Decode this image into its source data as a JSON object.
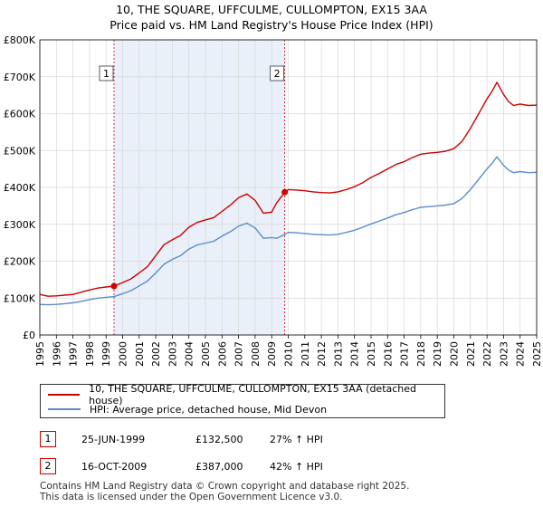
{
  "title": "10, THE SQUARE, UFFCULME, CULLOMPTON, EX15 3AA",
  "subtitle": "Price paid vs. HM Land Registry's House Price Index (HPI)",
  "colors": {
    "property": "#cc0000",
    "hpi": "#5b8ccc",
    "band": "#dce6f5",
    "marker_line": "#cc0000",
    "grid": "#d8d8d8"
  },
  "chart_data": {
    "type": "line",
    "title": "10, THE SQUARE, UFFCULME, CULLOMPTON, EX15 3AA",
    "subtitle": "Price paid vs. HM Land Registry's House Price Index (HPI)",
    "xlim": [
      1995,
      2025
    ],
    "ylim": [
      0,
      800000
    ],
    "y_ticks": [
      0,
      100000,
      200000,
      300000,
      400000,
      500000,
      600000,
      700000,
      800000
    ],
    "y_tick_labels": [
      "£0",
      "£100K",
      "£200K",
      "£300K",
      "£400K",
      "£500K",
      "£600K",
      "£700K",
      "£800K"
    ],
    "x_tick_labels": [
      "1995",
      "1996",
      "1997",
      "1998",
      "1999",
      "2000",
      "2001",
      "2002",
      "2003",
      "2004",
      "2005",
      "2006",
      "2007",
      "2008",
      "2009",
      "2010",
      "2011",
      "2012",
      "2013",
      "2014",
      "2015",
      "2016",
      "2017",
      "2018",
      "2019",
      "2020",
      "2021",
      "2022",
      "2023",
      "2024",
      "2025"
    ],
    "grid": true,
    "shaded_band": [
      1999.48,
      2009.79
    ],
    "series": [
      {
        "name": "10, THE SQUARE, UFFCULME, CULLOMPTON, EX15 3AA (detached house)",
        "x": [
          1995,
          1995.5,
          1996,
          1996.5,
          1997,
          1997.5,
          1998,
          1998.5,
          1999,
          1999.48,
          2000,
          2000.5,
          2001,
          2001.5,
          2002,
          2002.5,
          2003,
          2003.5,
          2004,
          2004.5,
          2005,
          2005.5,
          2006,
          2006.5,
          2007,
          2007.5,
          2008,
          2008.5,
          2009,
          2009.3,
          2009.79,
          2010,
          2010.5,
          2011,
          2011.5,
          2012,
          2012.5,
          2013,
          2013.5,
          2014,
          2014.5,
          2015,
          2015.5,
          2016,
          2016.5,
          2017,
          2017.5,
          2018,
          2018.5,
          2019,
          2019.5,
          2020,
          2020.5,
          2021,
          2021.5,
          2022,
          2022.3,
          2022.6,
          2023,
          2023.3,
          2023.6,
          2024,
          2024.5,
          2025
        ],
        "values": [
          110000,
          105000,
          106000,
          108000,
          110000,
          116000,
          122000,
          127000,
          130000,
          132500,
          142000,
          152000,
          168000,
          185000,
          215000,
          245000,
          258000,
          270000,
          292000,
          305000,
          312000,
          318000,
          335000,
          352000,
          372000,
          382000,
          365000,
          330000,
          333000,
          358000,
          387000,
          394000,
          393000,
          391000,
          388000,
          386000,
          385000,
          388000,
          394000,
          402000,
          413000,
          427000,
          438000,
          450000,
          462000,
          470000,
          481000,
          490000,
          493000,
          495000,
          498000,
          505000,
          525000,
          560000,
          600000,
          640000,
          660000,
          685000,
          652000,
          633000,
          622000,
          626000,
          622000,
          623000
        ]
      },
      {
        "name": "HPI: Average price, detached house, Mid Devon",
        "x": [
          1995,
          1995.5,
          1996,
          1996.5,
          1997,
          1997.5,
          1998,
          1998.5,
          1999,
          1999.48,
          2000,
          2000.5,
          2001,
          2001.5,
          2002,
          2002.5,
          2003,
          2003.5,
          2004,
          2004.5,
          2005,
          2005.5,
          2006,
          2006.5,
          2007,
          2007.5,
          2008,
          2008.5,
          2009,
          2009.3,
          2009.79,
          2010,
          2010.5,
          2011,
          2011.5,
          2012,
          2012.5,
          2013,
          2013.5,
          2014,
          2014.5,
          2015,
          2015.5,
          2016,
          2016.5,
          2017,
          2017.5,
          2018,
          2018.5,
          2019,
          2019.5,
          2020,
          2020.5,
          2021,
          2021.5,
          2022,
          2022.3,
          2022.6,
          2023,
          2023.3,
          2023.6,
          2024,
          2024.5,
          2025
        ],
        "values": [
          83000,
          82000,
          83000,
          85000,
          87000,
          91000,
          96000,
          100000,
          102000,
          104000,
          112000,
          120000,
          133000,
          146000,
          168000,
          192000,
          205000,
          215000,
          233000,
          244000,
          249000,
          254000,
          268000,
          280000,
          295000,
          303000,
          290000,
          262000,
          264000,
          262000,
          272500,
          278000,
          277000,
          275000,
          273000,
          272000,
          271000,
          273000,
          278000,
          284000,
          292000,
          301000,
          309000,
          317000,
          326000,
          332000,
          340000,
          346000,
          348000,
          350000,
          352000,
          356000,
          370000,
          394000,
          422000,
          450000,
          465000,
          483000,
          460000,
          447000,
          440000,
          443000,
          440000,
          441000
        ]
      }
    ],
    "annotations": [
      {
        "label": "1",
        "x": 1999.48,
        "y": 132500
      },
      {
        "label": "2",
        "x": 2009.79,
        "y": 387000
      }
    ]
  },
  "legend": {
    "property_label": "10, THE SQUARE, UFFCULME, CULLOMPTON, EX15 3AA (detached house)",
    "hpi_label": "HPI: Average price, detached house, Mid Devon"
  },
  "sales": [
    {
      "num": "1",
      "date": "25-JUN-1999",
      "price": "£132,500",
      "hpi": "27% ↑ HPI"
    },
    {
      "num": "2",
      "date": "16-OCT-2009",
      "price": "£387,000",
      "hpi": "42% ↑ HPI"
    }
  ],
  "footer": {
    "line1": "Contains HM Land Registry data © Crown copyright and database right 2025.",
    "line2": "This data is licensed under the Open Government Licence v3.0."
  }
}
